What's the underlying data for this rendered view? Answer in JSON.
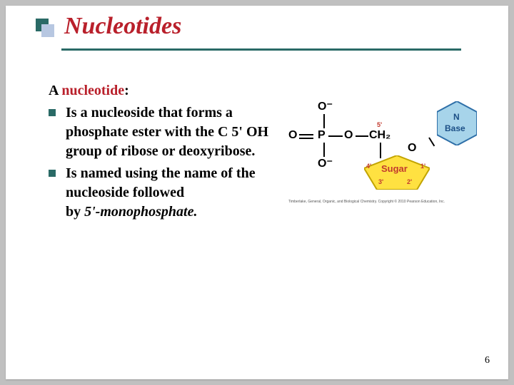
{
  "colors": {
    "title": "#b9202b",
    "bullet_back": "#2a6a66",
    "bullet_front": "#b7c7e1",
    "underline": "#2a6a66",
    "li_bullet": "#2a6a66",
    "nucleotide_word": "#b9202b",
    "sugar_fill": "#ffe141",
    "sugar_stroke": "#c2a400",
    "sugar_text": "#c23a2e",
    "base_fill": "#a7d4ea",
    "base_stroke": "#2e6fa8",
    "base_text": "#1c4f86",
    "five_prime": "#c23a2e",
    "atom_color": "#000000"
  },
  "fonts": {
    "title_size": 34,
    "body_size": 20,
    "atom_size": 16,
    "sugar_label_size": 13,
    "base_label_size": 12
  },
  "title": "Nucleotides",
  "lead": {
    "a": "A ",
    "word": "nucleotide",
    "colon": ":"
  },
  "bullets": [
    {
      "html": "Is a nucleoside that forms a phosphate ester with the C 5' OH group of ribose or deoxyribose."
    },
    {
      "html": "Is named using the name of the nucleoside followed<br>by <em>5'-monophosphate.</em>"
    }
  ],
  "diagram": {
    "phosphate": {
      "O_top": "O⁻",
      "O_left": "O",
      "P": "P",
      "O_mid": "O",
      "O_bot": "O⁻",
      "CH2": "CH₂",
      "O_ring": "O"
    },
    "five_prime": "5'",
    "sugar": {
      "label": "Sugar",
      "c4": "4'",
      "c3": "3'",
      "c2": "2'",
      "c1": "1'"
    },
    "base": {
      "line1": "N",
      "line2": "Base"
    },
    "attribution": "Timberlake, General, Organic, and Biological Chemistry. Copyright © 2010 Pearson Education, Inc."
  },
  "page_number": "6"
}
